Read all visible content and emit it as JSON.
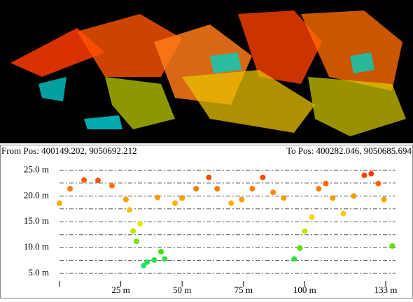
{
  "header": {
    "from": "From Pos: 400149.202, 9050692.212",
    "to": "To Pos: 400282.046, 9050685.694"
  },
  "chart_data": {
    "type": "scatter",
    "x": [
      0,
      4.3,
      10,
      15.7,
      21.4,
      27.1,
      28.6,
      30,
      31.4,
      32.9,
      34.3,
      35.7,
      38.6,
      41.4,
      42.9,
      40,
      47.1,
      50,
      55.7,
      60.9,
      64.3,
      70,
      74.3,
      78.6,
      82.9,
      87.1,
      91.4,
      95.7,
      98,
      100,
      102.9,
      105.7,
      108.6,
      111.4,
      115.7,
      120,
      124.3,
      127.1,
      130,
      132.3,
      135.7
    ],
    "y": [
      18.6,
      21.4,
      23.1,
      23,
      22,
      19.3,
      17.3,
      13.2,
      11.2,
      14.6,
      6.5,
      7.2,
      7.6,
      9.2,
      7.8,
      19.7,
      18.6,
      19.6,
      21.4,
      23.6,
      21.4,
      18.6,
      19.3,
      21.4,
      23.6,
      20.7,
      19.6,
      7.8,
      9.9,
      13.2,
      15.9,
      21.4,
      22.4,
      19.6,
      16.6,
      20,
      24,
      24.3,
      22.4,
      19.3,
      10.3
    ],
    "colormap": [
      "#00e0e0",
      "#40e000",
      "#f0e800",
      "#ff9000",
      "#ff1500"
    ],
    "xlim": [
      0,
      137
    ],
    "ylim": [
      3.8,
      26
    ],
    "xticks": [
      {
        "value": 0,
        "label": null
      },
      {
        "value": 25,
        "label": "25 m"
      },
      {
        "value": 50,
        "label": "50 m"
      },
      {
        "value": 75,
        "label": "75 m"
      },
      {
        "value": 100,
        "label": "100 m"
      },
      {
        "value": 133,
        "label": "133 m"
      }
    ],
    "yticks": [
      {
        "value": 5,
        "label": "5.0 m"
      },
      {
        "value": 7.5,
        "label": null
      },
      {
        "value": 10,
        "label": "10.0 m"
      },
      {
        "value": 12.5,
        "label": null
      },
      {
        "value": 15,
        "label": "15.0 m"
      },
      {
        "value": 17.5,
        "label": null
      },
      {
        "value": 20,
        "label": "20.0 m"
      },
      {
        "value": 22.5,
        "label": null
      },
      {
        "value": 25,
        "label": "25.0 m"
      }
    ],
    "grid": true
  }
}
